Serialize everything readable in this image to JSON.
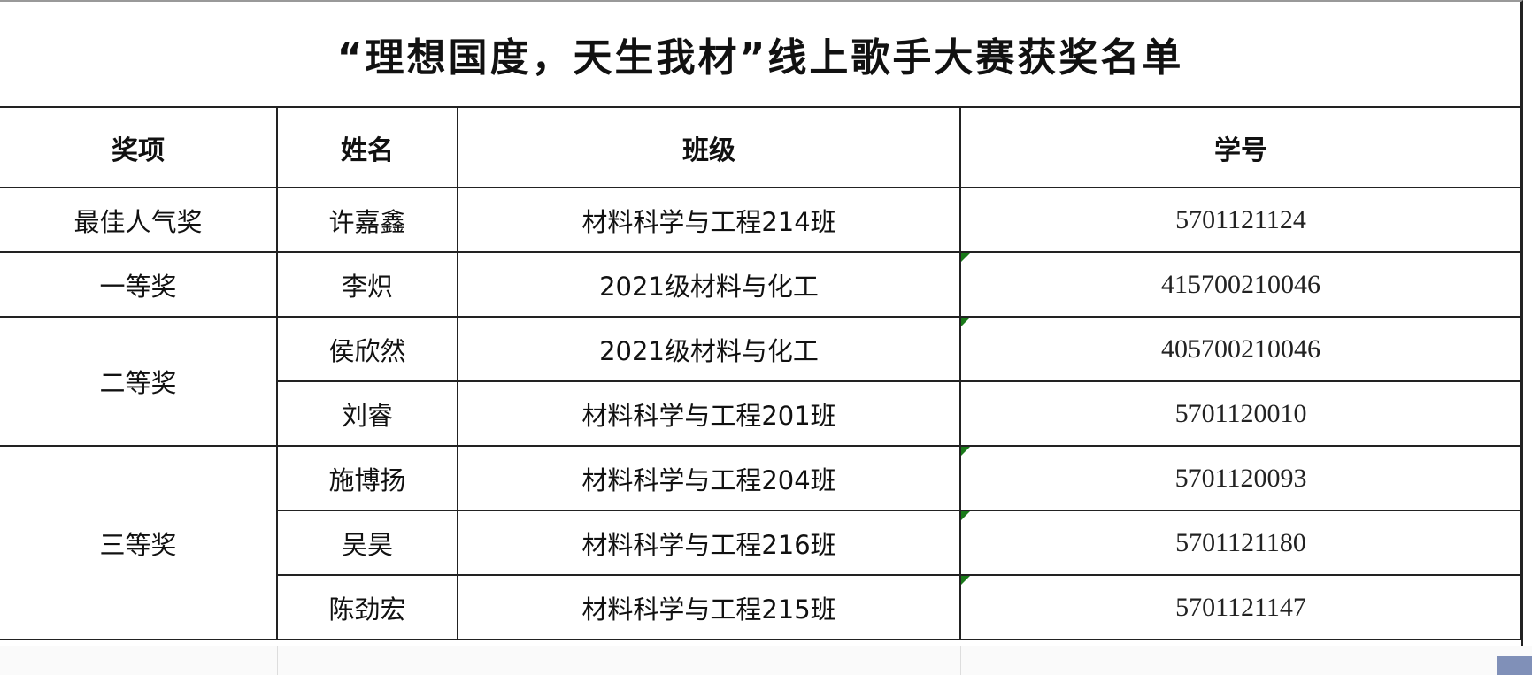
{
  "title": "“理想国度，天生我材”线上歌手大赛获奖名单",
  "headers": [
    "奖项",
    "姓名",
    "班级",
    "学号"
  ],
  "awards": [
    "最佳人气奖",
    "一等奖",
    "二等奖",
    "三等奖"
  ],
  "rows": [
    {
      "name": "许嘉鑫",
      "class": "材料科学与工程214班",
      "id": "5701121124"
    },
    {
      "name": "李炽",
      "class": "2021级材料与化工",
      "id": "415700210046"
    },
    {
      "name": "侯欣然",
      "class": "2021级材料与化工",
      "id": "405700210046"
    },
    {
      "name": "刘睿",
      "class": "材料科学与工程201班",
      "id": "5701120010"
    },
    {
      "name": "施博扬",
      "class": "材料科学与工程204班",
      "id": "5701120093"
    },
    {
      "name": "吴昊",
      "class": "材料科学与工程216班",
      "id": "5701121180"
    },
    {
      "name": "陈劲宏",
      "class": "材料科学与工程215班",
      "id": "5701121147"
    }
  ],
  "colors": {
    "error_flag": "#1a7a1a",
    "border": "#222222"
  }
}
